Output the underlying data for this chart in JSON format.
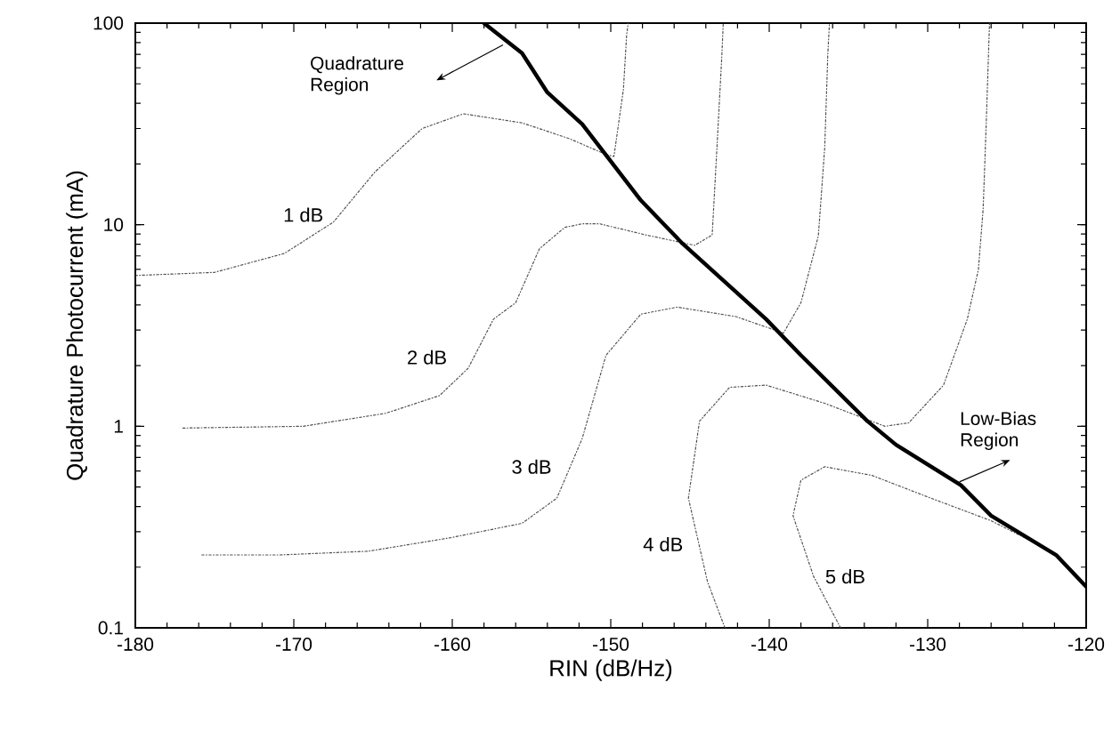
{
  "chart_data": {
    "type": "line",
    "xlabel": "RIN (dB/Hz)",
    "ylabel": "Quadrature Photocurrent (mA)",
    "log": "y",
    "marker": "none",
    "xlim": [
      -180,
      -120
    ],
    "ylim": [
      0.1,
      100
    ],
    "xticks": [
      -180,
      -170,
      -160,
      -150,
      -140,
      -130,
      -120
    ],
    "yticks": [
      0.1,
      1,
      10,
      100
    ],
    "grid": false,
    "annotations": [
      "Quadrature Region",
      "Low-Bias Region"
    ],
    "series": [
      {
        "name": "1 dB",
        "color": "#505050",
        "line_style": "dotted",
        "x": [
          -180,
          -175,
          -170.6,
          -167.5,
          -164.9,
          -161.9,
          -159.3,
          -155.6,
          -152.6,
          -150.3,
          -149.8,
          -149.2,
          -149.0,
          -148.9
        ],
        "values": [
          5.6,
          5.8,
          7.2,
          10.3,
          18.2,
          30,
          35.5,
          32,
          26.7,
          22.3,
          21.8,
          47,
          87,
          100
        ]
      },
      {
        "name": "2 dB",
        "color": "#505050",
        "line_style": "dotted",
        "x": [
          -177,
          -169.4,
          -164.2,
          -160.8,
          -159,
          -157.4,
          -156,
          -154.5,
          -152.9,
          -151.8,
          -150.7,
          -147.8,
          -144.7,
          -143.6,
          -143.3,
          -143.0,
          -142.9
        ],
        "values": [
          0.98,
          1.0,
          1.16,
          1.42,
          1.94,
          3.4,
          4.1,
          7.6,
          9.7,
          10.1,
          10.1,
          8.9,
          7.9,
          8.9,
          24,
          66.6,
          100
        ]
      },
      {
        "name": "3 dB",
        "color": "#505050",
        "line_style": "dotted",
        "x": [
          -175.8,
          -170.9,
          -165.3,
          -160.1,
          -155.6,
          -153.4,
          -151.8,
          -150.3,
          -148.1,
          -145.8,
          -142.1,
          -139.1,
          -138,
          -136.9,
          -136.5,
          -136.3,
          -136.2
        ],
        "values": [
          0.23,
          0.23,
          0.24,
          0.28,
          0.33,
          0.44,
          0.87,
          2.25,
          3.6,
          3.9,
          3.5,
          2.9,
          4.1,
          8.8,
          24,
          71,
          100
        ]
      },
      {
        "name": "4 dB",
        "color": "#505050",
        "line_style": "dotted",
        "x": [
          -142.8,
          -143.9,
          -145.1,
          -144.4,
          -142.5,
          -140.2,
          -136.5,
          -132.7,
          -131.2,
          -129,
          -127.5,
          -126.8,
          -126.5,
          -126.3,
          -126.1
        ],
        "values": [
          0.1,
          0.17,
          0.44,
          1.06,
          1.56,
          1.6,
          1.3,
          1.0,
          1.04,
          1.6,
          3.4,
          6,
          12,
          33,
          100
        ]
      },
      {
        "name": "5 dB",
        "color": "#505050",
        "line_style": "dotted",
        "x": [
          -135.5,
          -137.2,
          -138.5,
          -138,
          -136.5,
          -133.5,
          -129.8,
          -126,
          -122.2
        ],
        "values": [
          0.1,
          0.18,
          0.36,
          0.54,
          0.63,
          0.57,
          0.44,
          0.34,
          0.24
        ]
      },
      {
        "color": "#000000",
        "line_style": "solid",
        "x": [
          -158,
          -155.6,
          -154,
          -151.8,
          -149.2,
          -148.1,
          -145.5,
          -140.2,
          -138,
          -133.8,
          -132,
          -127.9,
          -126,
          -121.9,
          -120
        ],
        "values": [
          100,
          71,
          45.3,
          31.5,
          17.1,
          13.2,
          8.1,
          3.4,
          2.25,
          1.06,
          0.81,
          0.51,
          0.36,
          0.23,
          0.16
        ]
      }
    ]
  }
}
